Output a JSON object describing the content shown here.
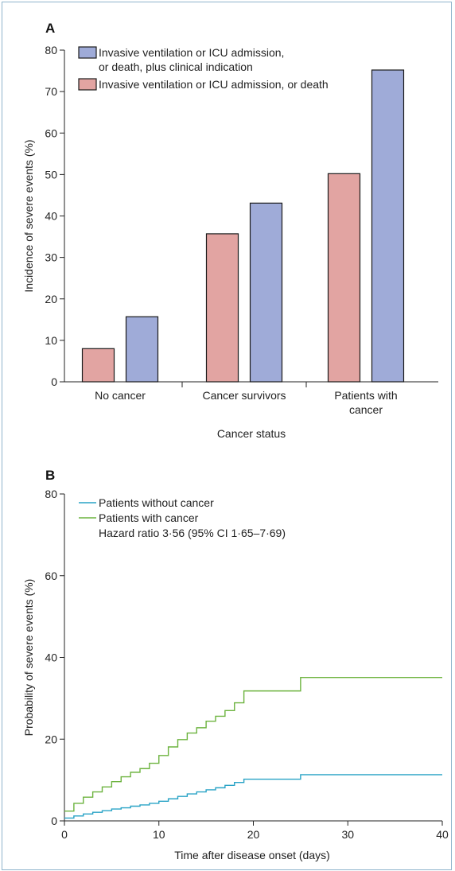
{
  "chart_data": [
    {
      "panel": "A",
      "type": "bar",
      "title": "",
      "xlabel": "Cancer status",
      "ylabel": "Incidence of severe events (%)",
      "ylim": [
        0,
        80
      ],
      "yticks": [
        0,
        10,
        20,
        30,
        40,
        50,
        60,
        70,
        80
      ],
      "categories": [
        [
          "No cancer"
        ],
        [
          "Cancer survivors"
        ],
        [
          "Patients with",
          "cancer"
        ]
      ],
      "series": [
        {
          "name": "Invasive ventilation or ICU admission, or death",
          "color": "#e2a4a2",
          "values": [
            8.0,
            35.7,
            50.2
          ]
        },
        {
          "name": "Invasive ventilation or ICU admission, or death, plus clinical indication",
          "legend_lines": [
            "Invasive ventilation or ICU admission,",
            "or death, plus clinical indication"
          ],
          "color": "#9fabd8",
          "values": [
            15.7,
            43.1,
            75.2
          ]
        }
      ],
      "legend_position": "top-left",
      "grid": false
    },
    {
      "panel": "B",
      "type": "line",
      "step": true,
      "title": "",
      "xlabel": "Time after disease onset (days)",
      "ylabel": "Probability of severe events (%)",
      "xlim": [
        0,
        40
      ],
      "ylim": [
        0,
        80
      ],
      "xticks": [
        0,
        10,
        20,
        30,
        40
      ],
      "yticks": [
        0,
        20,
        40,
        60,
        80
      ],
      "annotation": "Hazard ratio 3·56 (95% CI 1·65–7·69)",
      "legend_position": "top-left",
      "grid": false,
      "series": [
        {
          "name": "Patients without cancer",
          "color": "#29a3c6",
          "x": [
            0,
            1,
            2,
            3,
            4,
            5,
            6,
            7,
            8,
            9,
            10,
            11,
            12,
            13,
            14,
            15,
            16,
            17,
            18,
            19,
            25,
            40
          ],
          "y": [
            0.7,
            1.2,
            1.7,
            2.1,
            2.5,
            2.9,
            3.2,
            3.6,
            3.9,
            4.3,
            4.8,
            5.4,
            6.0,
            6.6,
            7.1,
            7.6,
            8.1,
            8.7,
            9.4,
            10.2,
            11.3,
            11.3
          ]
        },
        {
          "name": "Patients with cancer",
          "color": "#6cb33e",
          "x": [
            0,
            1,
            2,
            3,
            4,
            5,
            6,
            7,
            8,
            9,
            10,
            11,
            12,
            13,
            14,
            15,
            16,
            17,
            18,
            19,
            25,
            40
          ],
          "y": [
            2.4,
            4.3,
            5.8,
            7.1,
            8.3,
            9.6,
            10.8,
            11.9,
            12.8,
            14.1,
            16.0,
            18.1,
            19.9,
            21.5,
            22.8,
            24.4,
            25.6,
            27.0,
            28.9,
            31.8,
            35.1,
            35.1
          ]
        }
      ]
    }
  ]
}
